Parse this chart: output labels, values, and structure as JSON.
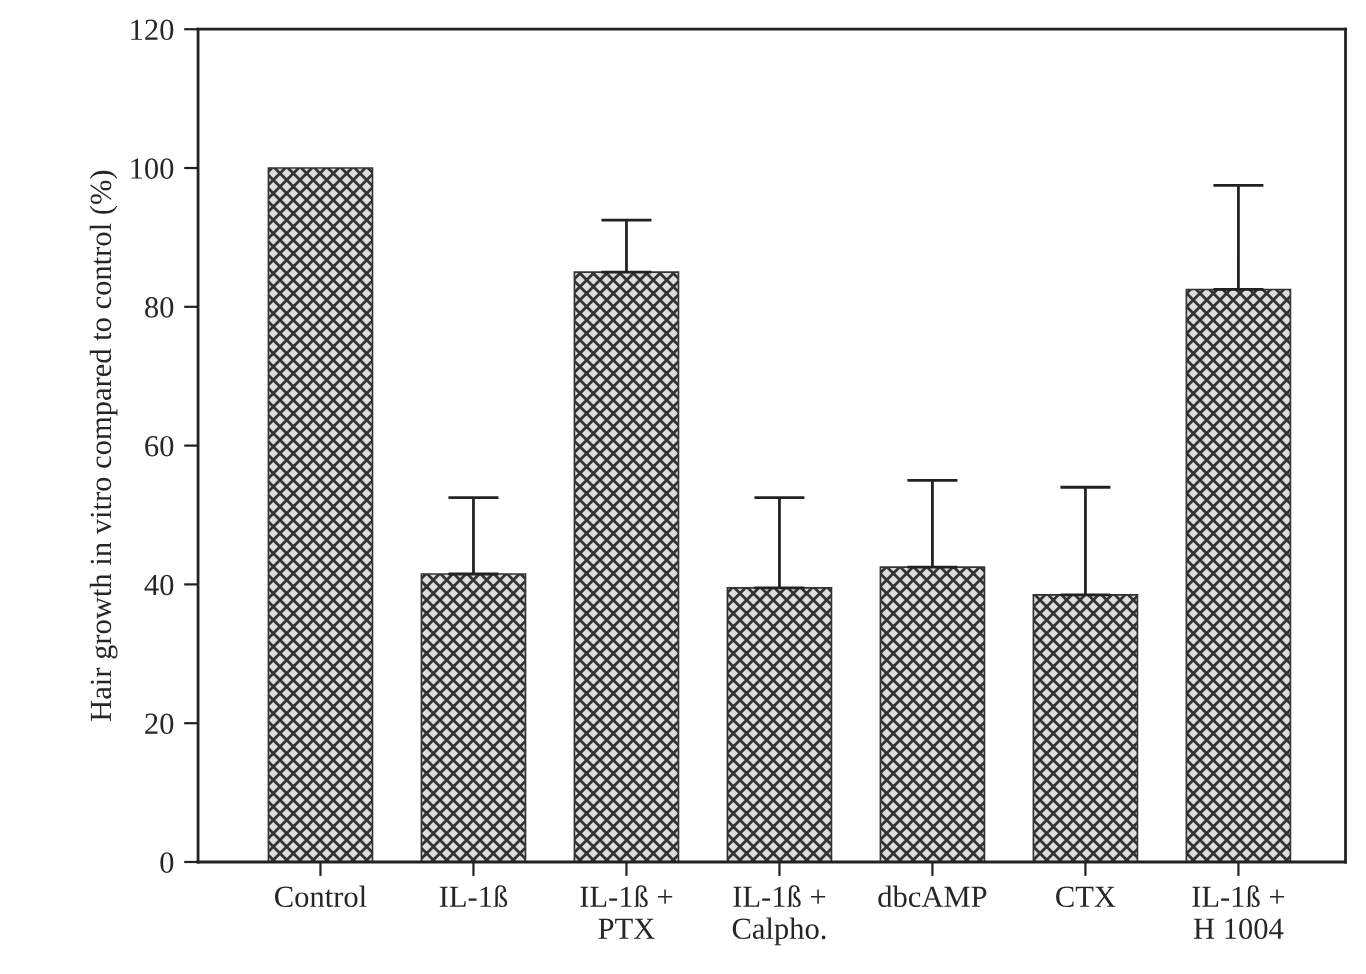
{
  "chart_data": {
    "type": "bar",
    "ylabel": "Hair growth in vitro compared to control (%)",
    "categories": [
      "Control",
      "IL-1ß",
      "IL-1ß +\nPTX",
      "IL-1ß +\nCalpho.",
      "dbcAMP",
      "CTX",
      "IL-1ß +\nH 1004"
    ],
    "values": [
      100,
      41.5,
      85,
      39.5,
      42.5,
      38.5,
      82.5
    ],
    "errors": [
      null,
      [
        41.5,
        52.5
      ],
      [
        85,
        92.5
      ],
      [
        39.5,
        52.5
      ],
      [
        42.5,
        55
      ],
      [
        38.5,
        54
      ],
      [
        82.5,
        97.5
      ]
    ],
    "color": "#333333",
    "ylim": [
      0,
      120
    ],
    "yticks": [
      0,
      20,
      40,
      60,
      80,
      100,
      120
    ],
    "grid": false
  }
}
